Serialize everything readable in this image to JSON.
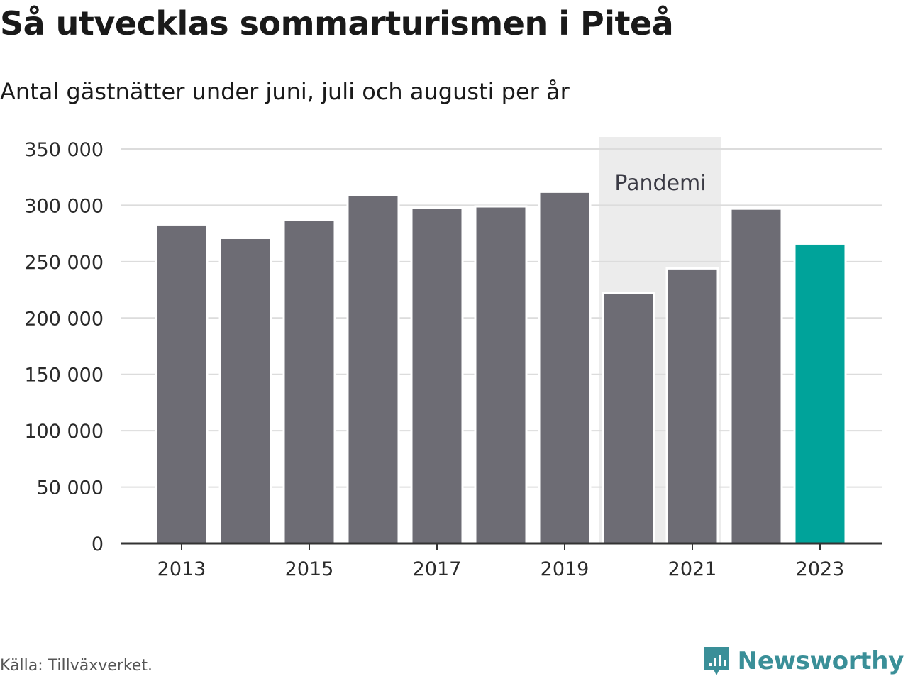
{
  "header": {
    "title": "Så utvecklas sommarturismen i Piteå",
    "subtitle": "Antal gästnätter under juni, juli och augusti per år"
  },
  "footer": {
    "source": "Källa: Tillväxverket.",
    "brand": "Newsworthy"
  },
  "colors": {
    "bar": "#6d6c74",
    "highlight": "#00a39a",
    "band": "#ececec",
    "grid": "#dcdcdc",
    "brand": "#3a8f98"
  },
  "chart_data": {
    "type": "bar",
    "title": "Så utvecklas sommarturismen i Piteå",
    "subtitle": "Antal gästnätter under juni, juli och augusti per år",
    "categories": [
      "2013",
      "2014",
      "2015",
      "2016",
      "2017",
      "2018",
      "2019",
      "2020",
      "2021",
      "2022",
      "2023"
    ],
    "values": [
      283000,
      271000,
      287000,
      309000,
      298000,
      299000,
      312000,
      222000,
      244000,
      297000,
      266000
    ],
    "highlight_category": "2023",
    "x_tick_labels": [
      "2013",
      "2015",
      "2017",
      "2019",
      "2021",
      "2023"
    ],
    "y_ticks": [
      0,
      50000,
      100000,
      150000,
      200000,
      250000,
      300000,
      350000
    ],
    "y_tick_labels": [
      "0",
      "50 000",
      "100 000",
      "150 000",
      "200 000",
      "250 000",
      "300 000",
      "350 000"
    ],
    "ylim": [
      0,
      360000
    ],
    "grid": true,
    "annotation": {
      "label": "Pandemi",
      "from": "2020",
      "to": "2021"
    },
    "xlabel": "",
    "ylabel": ""
  }
}
